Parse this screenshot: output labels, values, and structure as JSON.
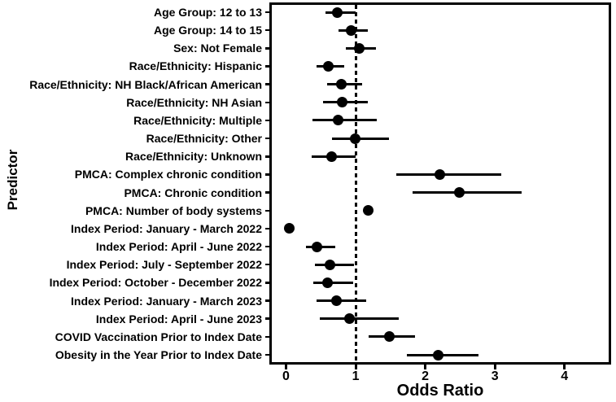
{
  "colors": {
    "foreground": "#000000",
    "background": "#ffffff"
  },
  "chart_data": {
    "type": "scatter",
    "subtype": "forest-plot",
    "title": "",
    "xlabel": "Odds Ratio",
    "ylabel": "Predictor",
    "xlim": [
      -0.2,
      4.65
    ],
    "x_ticks": [
      0,
      1,
      2,
      3,
      4
    ],
    "reference_line_x": 1,
    "grid": false,
    "legend": "none",
    "marker_shape": "circle",
    "categories": [
      "Age Group: 12 to 13",
      "Age Group: 14 to 15",
      "Sex: Not Female",
      "Race/Ethnicity: Hispanic",
      "Race/Ethnicity: NH Black/African American",
      "Race/Ethnicity: NH Asian",
      "Race/Ethnicity: Multiple",
      "Race/Ethnicity: Other",
      "Race/Ethnicity: Unknown",
      "PMCA: Complex chronic condition",
      "PMCA: Chronic condition",
      "PMCA: Number of body systems",
      "Index Period: January - March 2022",
      "Index Period: April - June 2022",
      "Index Period: July - September 2022",
      "Index Period: October - December 2022",
      "Index Period: January - March 2023",
      "Index Period: April - June 2023",
      "COVID Vaccination Prior to Index Date",
      "Obesity in the Year Prior to Index Date"
    ],
    "odds_ratio": [
      0.74,
      0.93,
      1.05,
      0.61,
      0.8,
      0.81,
      0.75,
      0.99,
      0.65,
      2.21,
      2.49,
      1.18,
      0.05,
      0.44,
      0.63,
      0.6,
      0.72,
      0.91,
      1.48,
      2.19
    ],
    "ci_low": [
      0.57,
      0.75,
      0.86,
      0.44,
      0.59,
      0.53,
      0.38,
      0.66,
      0.37,
      1.58,
      1.82,
      1.13,
      0.04,
      0.29,
      0.42,
      0.39,
      0.44,
      0.49,
      1.19,
      1.74
    ],
    "ci_high": [
      1.0,
      1.17,
      1.29,
      0.83,
      1.09,
      1.17,
      1.3,
      1.48,
      1.0,
      3.09,
      3.38,
      1.23,
      0.07,
      0.71,
      0.98,
      0.97,
      1.15,
      1.62,
      1.85,
      2.77
    ]
  }
}
